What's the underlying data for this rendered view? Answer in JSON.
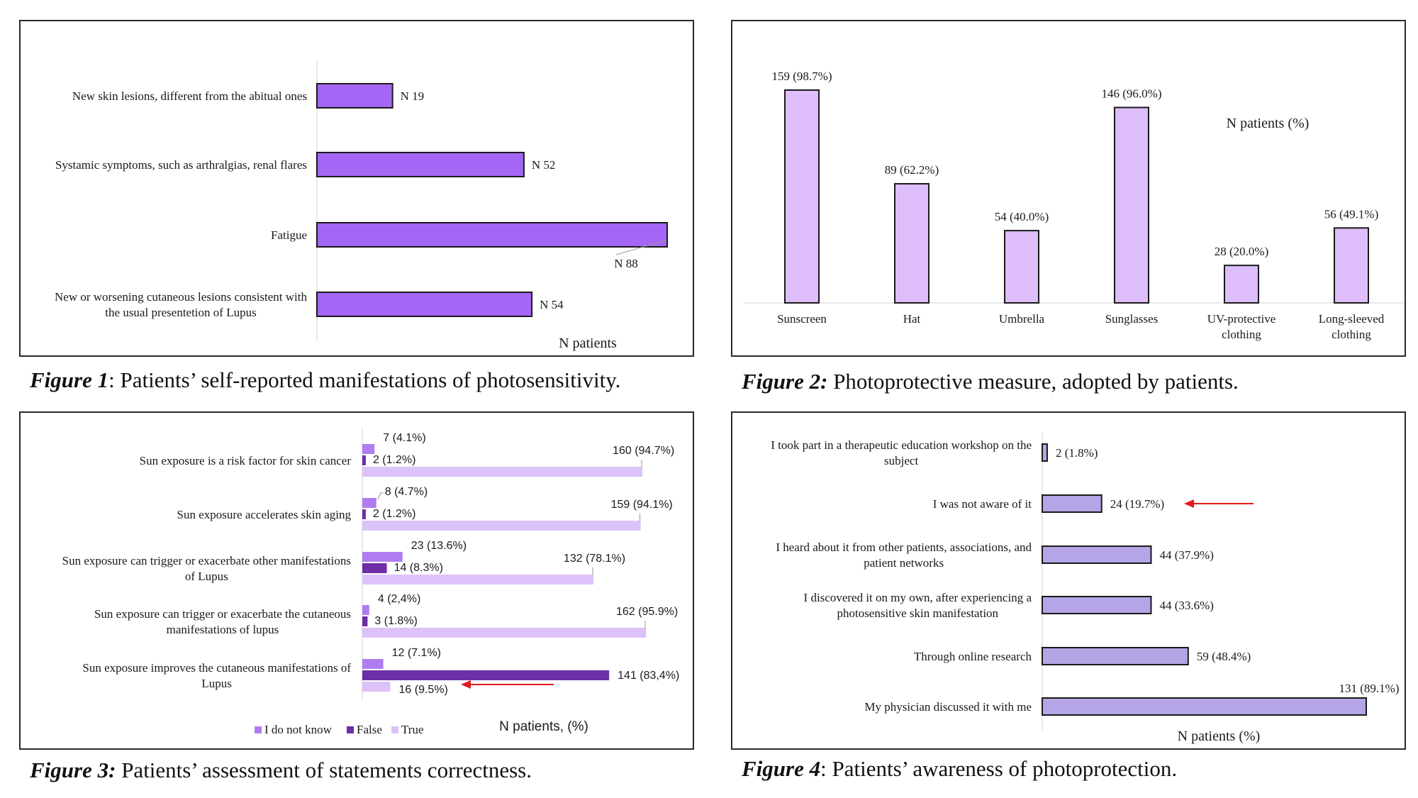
{
  "captions": {
    "fig1": {
      "prefix": "Figure 1",
      "text": ": Patients’ self-reported manifestations of photosensitivity."
    },
    "fig2": {
      "prefix": "Figure 2:",
      "text": " Photoprotective measure, adopted by patients."
    },
    "fig3": {
      "prefix": "Figure 3:",
      "text": " Patients’ assessment of statements correctness."
    },
    "fig4": {
      "prefix": "Figure 4",
      "text": ": Patients’ awareness of photoprotection."
    }
  },
  "colors": {
    "fig1_bar": "#a566f5",
    "fig2_bar": "#ddbdfa",
    "fig3_dontknow": "#b07cf0",
    "fig3_false": "#6d2ea6",
    "fig3_true": "#dcc2f8",
    "fig4_bar": "#b5a5e6",
    "arrow": "#e31a1c"
  },
  "chart_data": [
    {
      "id": "fig1",
      "type": "bar",
      "orientation": "horizontal",
      "categories": [
        [
          "New skin lesions, different from the abitual ones"
        ],
        [
          "Systamic symptoms, such as arthralgias, renal flares"
        ],
        [
          "Fatigue"
        ],
        [
          "New or worsening cutaneous lesions consistent with",
          "the usual presentetion of Lupus"
        ]
      ],
      "values": [
        19,
        52,
        88,
        54
      ],
      "labels": [
        "N 19",
        "N 52",
        "N 88",
        "N 54"
      ],
      "xlabel": "N patients",
      "xlim": [
        0,
        88
      ]
    },
    {
      "id": "fig2",
      "type": "bar",
      "orientation": "vertical",
      "categories": [
        [
          "Sunscreen"
        ],
        [
          "Hat"
        ],
        [
          "Umbrella"
        ],
        [
          "Sunglasses"
        ],
        [
          "UV-protective",
          "clothing"
        ],
        [
          "Long-sleeved",
          "clothing"
        ]
      ],
      "values": [
        159,
        89,
        54,
        146,
        28,
        56
      ],
      "labels": [
        "159 (98.7%)",
        "89 (62.2%)",
        "54 (40.0%)",
        "146 (96.0%)",
        "28 (20.0%)",
        "56 (49.1%)"
      ],
      "ylabel": "N patients (%)",
      "ylim": [
        0,
        159
      ]
    },
    {
      "id": "fig3",
      "type": "bar",
      "orientation": "horizontal",
      "categories": [
        [
          "Sun exposure is a risk factor for skin cancer"
        ],
        [
          "Sun exposure accelerates skin aging"
        ],
        [
          "Sun exposure can trigger or exacerbate other manifestations",
          "of Lupus"
        ],
        [
          "Sun exposure can trigger or exacerbate the cutaneous",
          "manifestations of lupus"
        ],
        [
          "Sun exposure improves the cutaneous manifestations of",
          "Lupus"
        ]
      ],
      "series": [
        {
          "name": "I do not know",
          "values": [
            7,
            8,
            23,
            4,
            12
          ],
          "labels": [
            "7 (4.1%)",
            "8 (4.7%)",
            "23 (13.6%)",
            "4 (2,4%)",
            "12 (7.1%)"
          ]
        },
        {
          "name": "False",
          "values": [
            2,
            2,
            14,
            3,
            141
          ],
          "labels": [
            "2 (1.2%)",
            "2 (1.2%)",
            "14 (8.3%)",
            "3 (1.8%)",
            "141 (83,4%)"
          ]
        },
        {
          "name": "True",
          "values": [
            160,
            159,
            132,
            162,
            16
          ],
          "labels": [
            "160 (94.7%)",
            "159 (94.1%)",
            "132 (78.1%)",
            "162 (95.9%)",
            "16 (9.5%)"
          ]
        }
      ],
      "xlabel": "N patients, (%)",
      "xlim": [
        0,
        162
      ],
      "annotation": "arrow pointing to 16 (9.5%)"
    },
    {
      "id": "fig4",
      "type": "bar",
      "orientation": "horizontal",
      "categories": [
        [
          "I took part in a therapeutic education workshop on the",
          "subject"
        ],
        [
          "I was not aware of it"
        ],
        [
          "I heard about it from other patients, associations, and",
          "patient networks"
        ],
        [
          "I discovered it on my own, after experiencing a",
          "photosensitive skin manifestation"
        ],
        [
          "Through online research"
        ],
        [
          "My physician discussed it with me"
        ]
      ],
      "values": [
        2,
        24,
        44,
        44,
        59,
        131
      ],
      "labels": [
        "2 (1.8%)",
        "24 (19.7%)",
        "44 (37.9%)",
        "44 (33.6%)",
        "59 (48.4%)",
        "131 (89.1%)"
      ],
      "xlabel": "N patients (%)",
      "xlim": [
        0,
        131
      ],
      "annotation": "arrow pointing to 24 (19.7%)"
    }
  ]
}
